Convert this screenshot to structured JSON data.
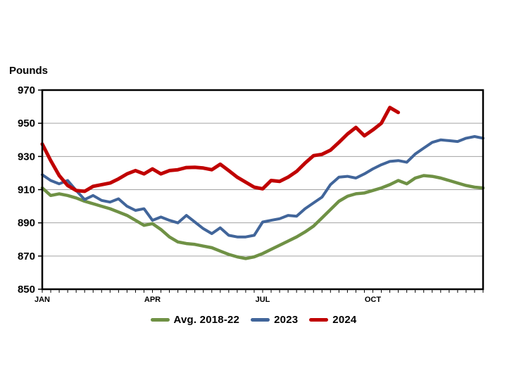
{
  "chart_data": {
    "type": "line",
    "title": "",
    "ylabel": "Pounds",
    "x_unit": "week",
    "weeks": 53,
    "x_axis": {
      "tick_labels": [
        "JAN",
        "APR",
        "JUL",
        "OCT"
      ],
      "tick_label_weeks": [
        1,
        14,
        27,
        40
      ],
      "minor_tick_count": 53
    },
    "y_axis": {
      "min": 850,
      "max": 970,
      "step": 20
    },
    "grid": "horizontal",
    "legend_position": "bottom-center",
    "series": [
      {
        "name": "Avg. 2018-22",
        "color": "#6F9145",
        "values": [
          911,
          906.5,
          907.5,
          906.5,
          905,
          903,
          901.5,
          900,
          898.5,
          896.5,
          894.5,
          891.5,
          888.5,
          889.5,
          886,
          881.5,
          878.5,
          877.5,
          877,
          876,
          875,
          873,
          871,
          869.5,
          868.5,
          869.5,
          871.5,
          874,
          876.5,
          879,
          881.5,
          884.5,
          888,
          893,
          898,
          903,
          906,
          907.5,
          908,
          909.5,
          911,
          913,
          915.5,
          913.5,
          917,
          918.5,
          918,
          917,
          915.5,
          914,
          912.5,
          911.5,
          911
        ]
      },
      {
        "name": "2023",
        "color": "#41659A",
        "values": [
          919,
          915.5,
          913.5,
          915.5,
          909.5,
          904,
          906.5,
          903.5,
          902.5,
          904.5,
          900,
          897.5,
          898.5,
          891.5,
          893.5,
          891.5,
          890,
          894.5,
          890.5,
          886.5,
          883.5,
          887,
          882.5,
          881.5,
          881.5,
          882.5,
          890.5,
          891.5,
          892.5,
          894.5,
          894,
          898.5,
          902,
          905.5,
          913,
          917.5,
          918,
          917,
          919.5,
          922.5,
          925,
          927,
          927.5,
          926.5,
          931.5,
          935,
          938.5,
          940,
          939.5,
          939,
          941,
          942,
          941
        ]
      },
      {
        "name": "2024",
        "color": "#C00000",
        "values": [
          937.5,
          927.5,
          918.5,
          912.5,
          909.5,
          909,
          912,
          913,
          914,
          916.5,
          919.5,
          921.5,
          919.5,
          922.5,
          919.5,
          921.5,
          922,
          923.3,
          923.5,
          923,
          922,
          925.3,
          921.5,
          917.5,
          914.5,
          911.5,
          910.5,
          915.5,
          915,
          917.5,
          921,
          926,
          930.5,
          931.3,
          933.8,
          938.5,
          943.5,
          947.5,
          942.5,
          946,
          950,
          959.5,
          956.5
        ]
      }
    ]
  },
  "style": {
    "gridline_color": "#A3A3A3",
    "axis_color": "#000000",
    "line_widths": [
      4.5,
      4,
      5
    ]
  }
}
